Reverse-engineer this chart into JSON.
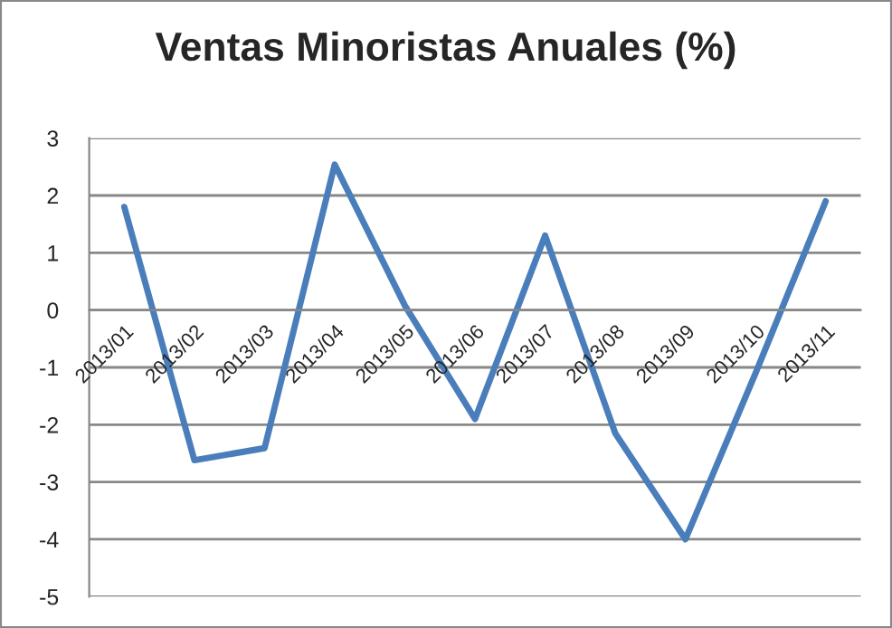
{
  "chart_data": {
    "type": "line",
    "title": "Ventas Minoristas Anuales (%)",
    "categories": [
      "2013/01",
      "2013/02",
      "2013/03",
      "2013/04",
      "2013/05",
      "2013/06",
      "2013/07",
      "2013/08",
      "2013/09",
      "2013/10",
      "2013/11"
    ],
    "series": [
      {
        "color": "#4a7ebb",
        "values": [
          1.8,
          -2.62,
          -2.41,
          2.54,
          0.08,
          -1.9,
          1.3,
          -2.15,
          -4.0,
          -1.1,
          1.9
        ]
      }
    ],
    "ylim": [
      -5,
      3
    ],
    "yticks": [
      -5,
      -4,
      -3,
      -2,
      -1,
      0,
      1,
      2,
      3
    ],
    "grid": "y",
    "legend": false,
    "marker": "none",
    "line_style": "solid"
  }
}
